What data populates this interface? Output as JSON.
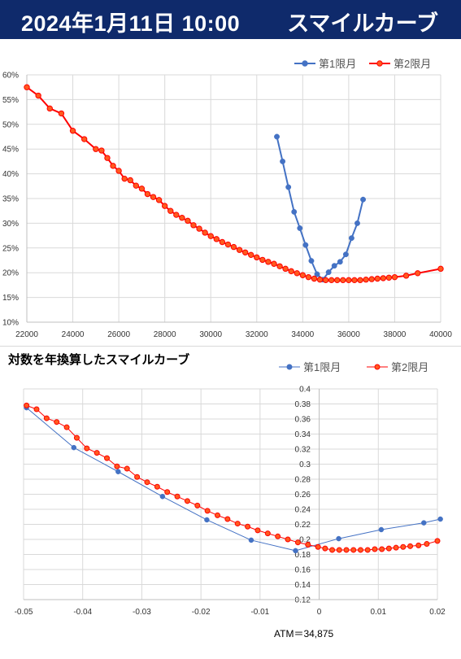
{
  "header": {
    "datetime": "2024年1月11日 10:00",
    "title": "スマイルカーブ"
  },
  "colors": {
    "header_bg": "#0f2a6b",
    "series1": "#4472c4",
    "series2": "#ff0000",
    "series2_marker_fill": "#ff5a1f",
    "grid": "#d9d9d9"
  },
  "annotation": {
    "atm": "ATM＝34,875"
  },
  "chart_data": [
    {
      "type": "line",
      "title": "",
      "ylim": [
        0.1,
        0.6
      ],
      "xlim": [
        22000,
        40000
      ],
      "x_ticks": [
        "22000",
        "24000",
        "26000",
        "28000",
        "30000",
        "32000",
        "34000",
        "36000",
        "38000",
        "40000"
      ],
      "y_ticks": [
        "10%",
        "15%",
        "20%",
        "25%",
        "30%",
        "35%",
        "40%",
        "45%",
        "50%",
        "55%",
        "60%"
      ],
      "legend": "top-right",
      "grid": true,
      "series": [
        {
          "name": "第1限月",
          "color": "#4472c4",
          "x": [
            32875,
            33125,
            33375,
            33625,
            33875,
            34125,
            34375,
            34625,
            34875,
            35125,
            35375,
            35625,
            35875,
            36125,
            36375,
            36625
          ],
          "y": [
            0.475,
            0.425,
            0.373,
            0.323,
            0.29,
            0.256,
            0.224,
            0.197,
            0.186,
            0.201,
            0.214,
            0.222,
            0.237,
            0.27,
            0.3,
            0.348
          ]
        },
        {
          "name": "第2限月",
          "color": "#ff0000",
          "x": [
            22000,
            22500,
            23000,
            23500,
            24000,
            24500,
            25000,
            25250,
            25500,
            25750,
            26000,
            26250,
            26500,
            26750,
            27000,
            27250,
            27500,
            27750,
            28000,
            28250,
            28500,
            28750,
            29000,
            29250,
            29500,
            29750,
            30000,
            30250,
            30500,
            30750,
            31000,
            31250,
            31500,
            31750,
            32000,
            32250,
            32500,
            32750,
            33000,
            33250,
            33500,
            33750,
            34000,
            34250,
            34500,
            34750,
            35000,
            35250,
            35500,
            35750,
            36000,
            36250,
            36500,
            36750,
            37000,
            37250,
            37500,
            37750,
            38000,
            38500,
            39000,
            40000
          ],
          "y": [
            0.575,
            0.558,
            0.532,
            0.522,
            0.487,
            0.47,
            0.45,
            0.447,
            0.432,
            0.416,
            0.406,
            0.39,
            0.387,
            0.376,
            0.37,
            0.359,
            0.353,
            0.347,
            0.335,
            0.325,
            0.317,
            0.311,
            0.305,
            0.296,
            0.289,
            0.281,
            0.274,
            0.268,
            0.262,
            0.257,
            0.252,
            0.246,
            0.241,
            0.236,
            0.231,
            0.226,
            0.222,
            0.218,
            0.213,
            0.208,
            0.203,
            0.199,
            0.195,
            0.191,
            0.188,
            0.186,
            0.185,
            0.185,
            0.185,
            0.185,
            0.185,
            0.185,
            0.185,
            0.186,
            0.187,
            0.188,
            0.189,
            0.19,
            0.191,
            0.194,
            0.199,
            0.208
          ]
        }
      ]
    },
    {
      "type": "line",
      "title": "対数を年換算したスマイルカーブ",
      "xlim": [
        -0.05,
        0.02
      ],
      "ylim": [
        0.12,
        0.4
      ],
      "x_ticks": [
        "-0.05",
        "-0.04",
        "-0.03",
        "-0.02",
        "-0.01",
        "0",
        "0.01",
        "0.02"
      ],
      "y_ticks": [
        "0.12",
        "0.14",
        "0.16",
        "0.18",
        "0.2",
        "0.22",
        "0.24",
        "0.26",
        "0.28",
        "0.3",
        "0.32",
        "0.34",
        "0.36",
        "0.38",
        "0.4"
      ],
      "legend": "top-right",
      "grid": true,
      "series": [
        {
          "name": "第1限月",
          "color": "#4472c4",
          "x": [
            -0.0495,
            -0.0415,
            -0.034,
            -0.0265,
            -0.019,
            -0.0115,
            -0.004,
            0.0033,
            0.0105,
            0.0177,
            0.0205
          ],
          "y": [
            0.375,
            0.322,
            0.29,
            0.257,
            0.226,
            0.199,
            0.185,
            0.201,
            0.213,
            0.222,
            0.227
          ]
        },
        {
          "name": "第2限月",
          "color": "#ff0000",
          "x": [
            -0.0495,
            -0.0478,
            -0.0461,
            -0.0444,
            -0.0427,
            -0.041,
            -0.0393,
            -0.0376,
            -0.0359,
            -0.0342,
            -0.0325,
            -0.0308,
            -0.0291,
            -0.0274,
            -0.0257,
            -0.024,
            -0.0223,
            -0.0206,
            -0.0189,
            -0.0172,
            -0.0155,
            -0.0138,
            -0.0121,
            -0.0104,
            -0.0087,
            -0.007,
            -0.0053,
            -0.0036,
            -0.0019,
            -0.0002,
            0.001,
            0.0022,
            0.0034,
            0.0046,
            0.0058,
            0.007,
            0.0082,
            0.0094,
            0.0106,
            0.0118,
            0.013,
            0.0142,
            0.0154,
            0.0168,
            0.0182,
            0.02
          ],
          "y": [
            0.378,
            0.373,
            0.361,
            0.356,
            0.349,
            0.335,
            0.321,
            0.315,
            0.308,
            0.297,
            0.294,
            0.283,
            0.276,
            0.27,
            0.263,
            0.257,
            0.251,
            0.245,
            0.238,
            0.232,
            0.227,
            0.221,
            0.217,
            0.212,
            0.208,
            0.204,
            0.2,
            0.196,
            0.193,
            0.19,
            0.188,
            0.186,
            0.186,
            0.186,
            0.186,
            0.186,
            0.186,
            0.187,
            0.187,
            0.188,
            0.189,
            0.19,
            0.191,
            0.192,
            0.194,
            0.198
          ]
        }
      ]
    }
  ]
}
